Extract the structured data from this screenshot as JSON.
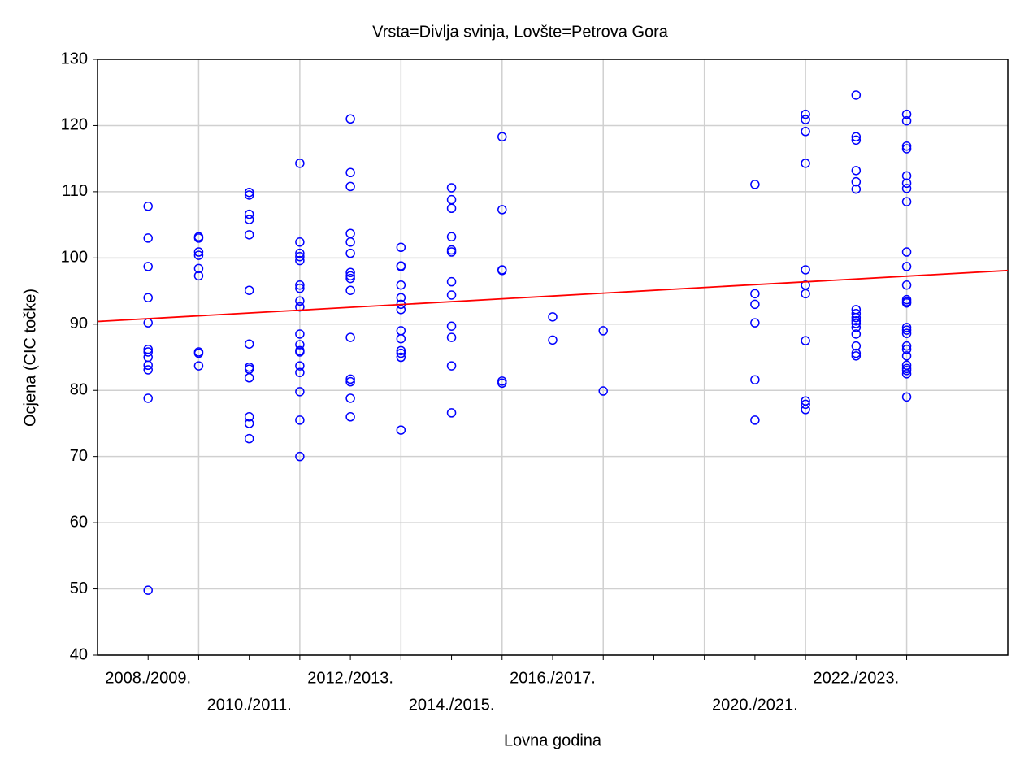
{
  "chart_data": {
    "type": "scatter",
    "title": "Vrsta=Divlja svinja, Lovšte=Petrova Gora",
    "x_label": "Lovna godina",
    "y_label": "Ocjena (CIC točke)",
    "categories": [
      "2008./2009.",
      null,
      "2010./2011.",
      null,
      "2012./2013.",
      null,
      "2014./2015.",
      null,
      "2016./2017.",
      null,
      null,
      null,
      "2020./2021.",
      null,
      "2022./2023.",
      null
    ],
    "xlim": [
      -1,
      17
    ],
    "ylim": [
      40,
      130
    ],
    "yticks": [
      40,
      50,
      60,
      70,
      80,
      90,
      100,
      110,
      120,
      130
    ],
    "grid": true,
    "series": [
      {
        "color": "#0000ff",
        "x": [
          0,
          0,
          0,
          0,
          0,
          0,
          0,
          0,
          0,
          0,
          0,
          0,
          1,
          1,
          1,
          1,
          1,
          1,
          1,
          1,
          1,
          2,
          2,
          2,
          2,
          2,
          2,
          2,
          2,
          2,
          2,
          2,
          2,
          2,
          3,
          3,
          3,
          3,
          3,
          3,
          3,
          3,
          3,
          3,
          3,
          3,
          3,
          3,
          3,
          3,
          3,
          3,
          4,
          4,
          4,
          4,
          4,
          4,
          4,
          4,
          4,
          4,
          4,
          4,
          4,
          4,
          4,
          5,
          5,
          5,
          5,
          5,
          5,
          5,
          5,
          5,
          5,
          5,
          5,
          5,
          6,
          6,
          6,
          6,
          6,
          6,
          6,
          6,
          6,
          6,
          6,
          6,
          7,
          7,
          7,
          7,
          7,
          7,
          8,
          8,
          9,
          9,
          12,
          12,
          12,
          12,
          12,
          12,
          13,
          13,
          13,
          13,
          13,
          13,
          13,
          13,
          13,
          13,
          13,
          14,
          14,
          14,
          14,
          14,
          14,
          14,
          14,
          14,
          14,
          14,
          14,
          14,
          14,
          14,
          14,
          15,
          15,
          15,
          15,
          15,
          15,
          15,
          15,
          15,
          15,
          15,
          15,
          15,
          15,
          15,
          15,
          15,
          15,
          15,
          15,
          15,
          15,
          15,
          15,
          15
        ],
        "y": [
          107.8,
          103,
          98.7,
          94,
          90.2,
          86.2,
          85.8,
          85,
          83.8,
          83.1,
          78.8,
          49.8,
          103.2,
          103,
          100.9,
          100.4,
          98.4,
          97.3,
          85.8,
          85.6,
          83.7,
          109.9,
          109.5,
          106.6,
          105.8,
          103.5,
          95.1,
          87,
          83.5,
          83.2,
          81.9,
          76,
          75,
          72.7,
          114.3,
          102.4,
          100.7,
          100.2,
          99.6,
          95.9,
          95.4,
          93.5,
          92.6,
          88.5,
          86.9,
          86,
          85.8,
          83.7,
          82.7,
          79.8,
          75.5,
          70,
          121,
          112.9,
          110.8,
          103.7,
          102.4,
          100.7,
          97.8,
          97.3,
          96.9,
          95.1,
          88,
          81.7,
          81.3,
          78.8,
          76,
          101.6,
          98.8,
          98.7,
          95.9,
          94,
          93,
          92.2,
          89,
          87.8,
          86,
          85.6,
          85,
          74,
          110.6,
          108.8,
          107.5,
          103.2,
          101.2,
          100.9,
          96.4,
          94.4,
          89.7,
          88,
          83.7,
          76.6,
          118.3,
          107.3,
          98.2,
          98.1,
          81.4,
          81.1,
          91.1,
          87.6,
          89,
          79.9,
          111.1,
          94.6,
          93,
          90.2,
          81.6,
          75.5,
          121.7,
          120.9,
          119.1,
          114.3,
          98.2,
          95.9,
          94.6,
          87.5,
          78.4,
          77.9,
          77.1,
          124.6,
          118.3,
          117.8,
          113.2,
          111.5,
          110.4,
          92.2,
          91.6,
          91,
          90.5,
          90.1,
          89.5,
          88.5,
          86.7,
          85.6,
          85.2,
          121.7,
          120.7,
          116.9,
          116.5,
          112.4,
          111.3,
          110.5,
          108.5,
          100.9,
          98.7,
          95.9,
          93.7,
          93.4,
          93.2,
          89.5,
          89.1,
          88.6,
          86.7,
          86.2,
          85.2,
          83.8,
          83.3,
          83,
          82.5,
          79
        ]
      }
    ],
    "fit": {
      "color": "#ff0000",
      "x": [
        -1,
        17
      ],
      "y": [
        90.4,
        98.1
      ]
    }
  }
}
